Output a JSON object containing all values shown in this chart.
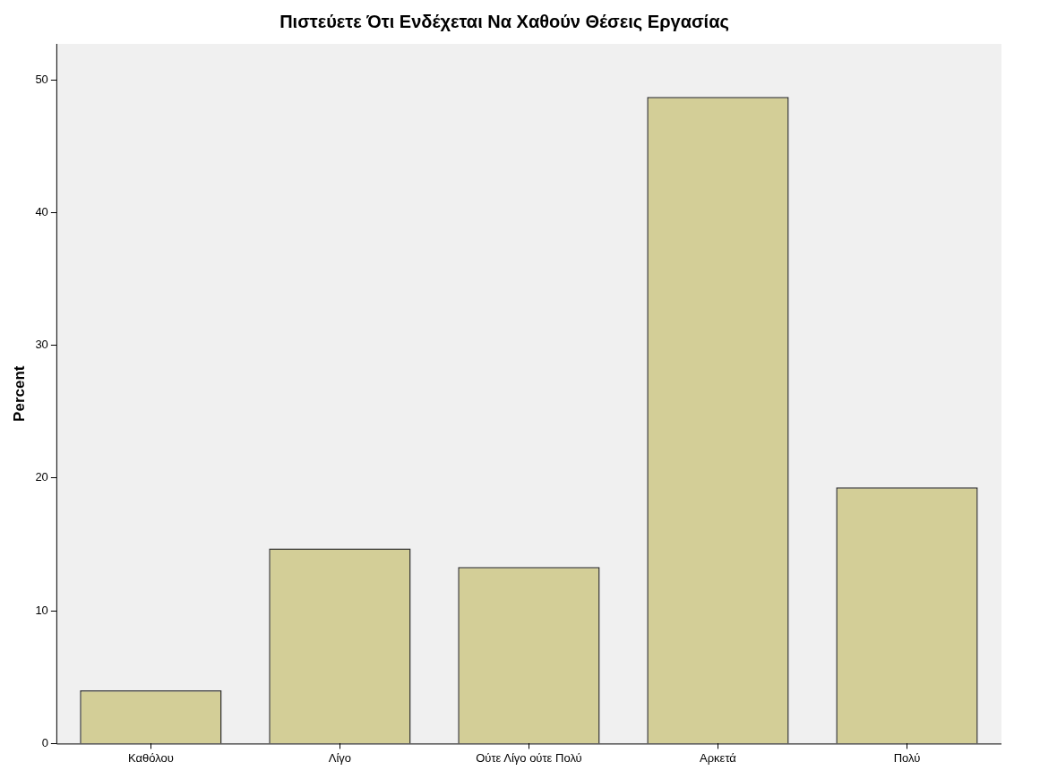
{
  "chart_data": {
    "type": "bar",
    "title": "Πιστεύετε Ότι Ενδέχεται Να Χαθούν Θέσεις Εργασίας",
    "ylabel": "Percent",
    "categories": [
      "Καθόλου",
      "Λίγο",
      "Ούτε Λίγο ούτε Πολύ",
      "Αρκετά",
      "Πολύ"
    ],
    "values": [
      4.0,
      14.7,
      13.3,
      48.7,
      19.3
    ],
    "color": "#d3ce97",
    "ylim": [
      0,
      52.7
    ],
    "yticks": [
      0,
      10,
      20,
      30,
      40,
      50
    ],
    "grid": false,
    "legend": false
  }
}
